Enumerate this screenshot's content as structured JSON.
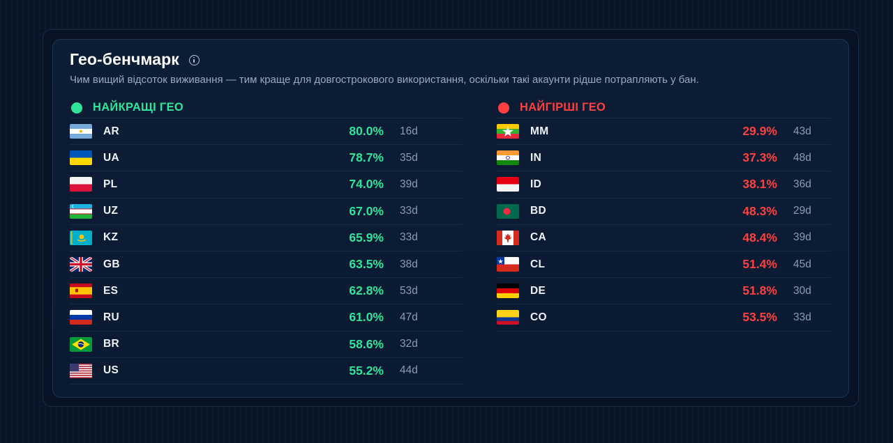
{
  "header": {
    "title": "Гео-бенчмарк",
    "subtitle": "Чим вищий відсоток виживання — тим краще для довгострокового використання, оскільки такі акаунти рідше потрапляють  у бан."
  },
  "colors": {
    "good": "#2ee59a",
    "bad": "#ff4040"
  },
  "best": {
    "heading": "НАЙКРАЩІ ГЕО",
    "rows": [
      {
        "code": "AR",
        "flag": "argentina-flag",
        "pct": "80.0%",
        "days": "16d"
      },
      {
        "code": "UA",
        "flag": "ukraine-flag",
        "pct": "78.7%",
        "days": "35d"
      },
      {
        "code": "PL",
        "flag": "poland-flag",
        "pct": "74.0%",
        "days": "39d"
      },
      {
        "code": "UZ",
        "flag": "uzbekistan-flag",
        "pct": "67.0%",
        "days": "33d"
      },
      {
        "code": "KZ",
        "flag": "kazakhstan-flag",
        "pct": "65.9%",
        "days": "33d"
      },
      {
        "code": "GB",
        "flag": "uk-flag",
        "pct": "63.5%",
        "days": "38d"
      },
      {
        "code": "ES",
        "flag": "spain-flag",
        "pct": "62.8%",
        "days": "53d"
      },
      {
        "code": "RU",
        "flag": "russia-flag",
        "pct": "61.0%",
        "days": "47d"
      },
      {
        "code": "BR",
        "flag": "brazil-flag",
        "pct": "58.6%",
        "days": "32d"
      },
      {
        "code": "US",
        "flag": "usa-flag",
        "pct": "55.2%",
        "days": "44d"
      }
    ]
  },
  "worst": {
    "heading": "НАЙГІРШІ ГЕО",
    "rows": [
      {
        "code": "MM",
        "flag": "myanmar-flag",
        "pct": "29.9%",
        "days": "43d"
      },
      {
        "code": "IN",
        "flag": "india-flag",
        "pct": "37.3%",
        "days": "48d"
      },
      {
        "code": "ID",
        "flag": "indonesia-flag",
        "pct": "38.1%",
        "days": "36d"
      },
      {
        "code": "BD",
        "flag": "bangladesh-flag",
        "pct": "48.3%",
        "days": "29d"
      },
      {
        "code": "CA",
        "flag": "canada-flag",
        "pct": "48.4%",
        "days": "39d"
      },
      {
        "code": "CL",
        "flag": "chile-flag",
        "pct": "51.4%",
        "days": "45d"
      },
      {
        "code": "DE",
        "flag": "germany-flag",
        "pct": "51.8%",
        "days": "30d"
      },
      {
        "code": "CO",
        "flag": "colombia-flag",
        "pct": "53.5%",
        "days": "33d"
      }
    ]
  }
}
